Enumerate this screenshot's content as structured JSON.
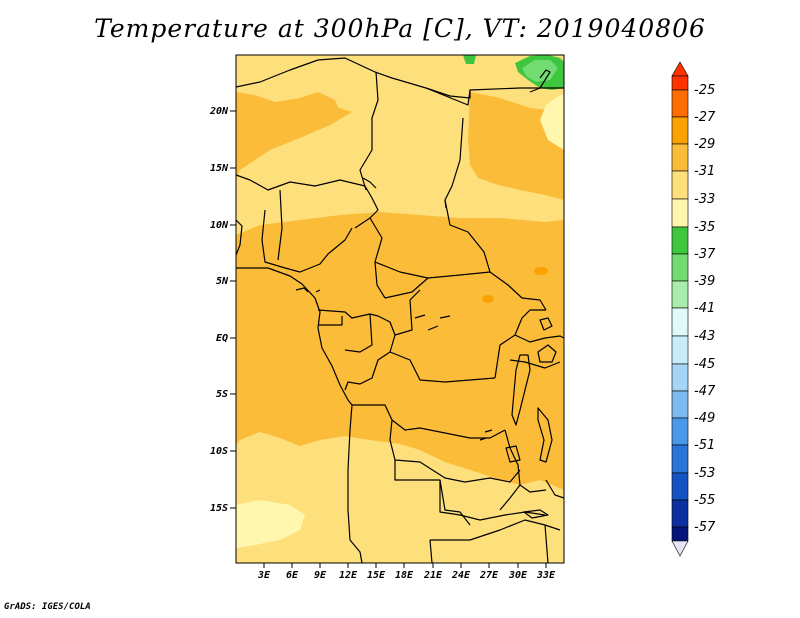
{
  "title": "Temperature at 300hPa [C], VT: 2019040806",
  "credit": "GrADS: IGES/COLA",
  "lat_ticks": [
    "20N",
    "15N",
    "10N",
    "5N",
    "EQ",
    "5S",
    "10S",
    "15S"
  ],
  "lon_ticks": [
    "3E",
    "6E",
    "9E",
    "12E",
    "15E",
    "18E",
    "21E",
    "24E",
    "27E",
    "30E",
    "33E"
  ],
  "colorbar": {
    "labels": [
      "-25",
      "-27",
      "-29",
      "-31",
      "-33",
      "-35",
      "-37",
      "-39",
      "-41",
      "-43",
      "-45",
      "-47",
      "-49",
      "-51",
      "-53",
      "-55",
      "-57"
    ],
    "colors": [
      "#ff3300",
      "#ff6d00",
      "#fba100",
      "#fbbc3a",
      "#fde07c",
      "#fff7ae",
      "#3fc63f",
      "#72dc72",
      "#a9ecab",
      "#e0f9f9",
      "#c8ecf8",
      "#a6d4f5",
      "#7bbaf0",
      "#4c98e8",
      "#2a74d8",
      "#1552c2",
      "#0b2fa0",
      "#04157a",
      "#e4e4f6"
    ]
  },
  "map_colors": {
    "band_29_31": "#fbbc3a",
    "band_31_33": "#fde07c",
    "band_33_35": "#fff7ae",
    "band_35_37": "#3fc63f",
    "band_37_39": "#72dc72",
    "band_27_29": "#fba100"
  }
}
